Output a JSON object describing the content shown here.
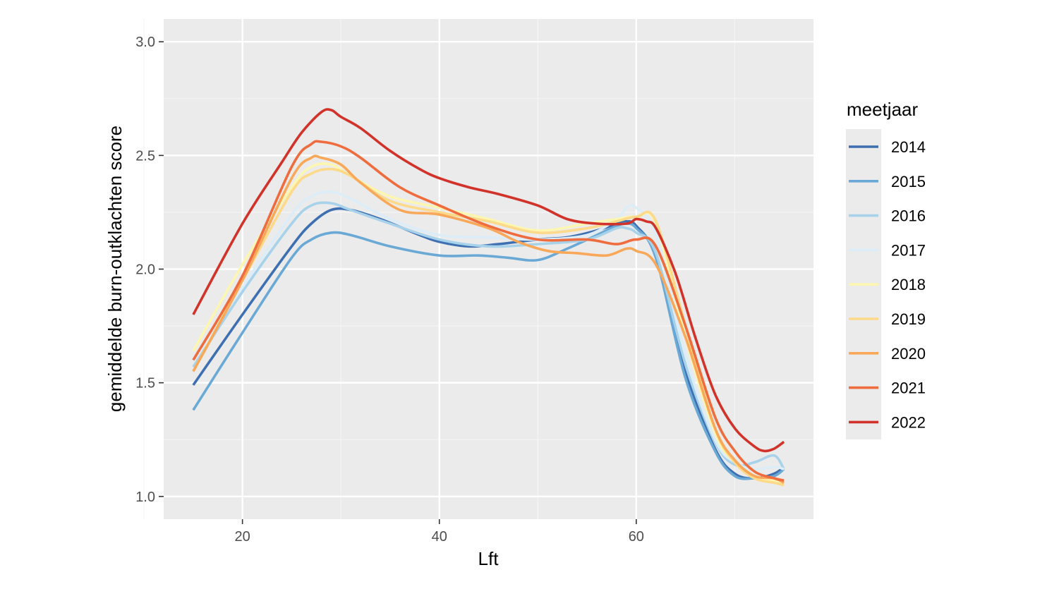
{
  "chart_data": {
    "type": "line",
    "xlabel": "Lft",
    "ylabel": "gemiddelde burn-outklachten score",
    "xlim": [
      12,
      78
    ],
    "ylim": [
      0.9,
      3.1
    ],
    "x_ticks": [
      20,
      40,
      60
    ],
    "y_ticks": [
      "1.0",
      "1.5",
      "2.0",
      "2.5",
      "3.0"
    ],
    "grid": true,
    "legend_title": "meetjaar",
    "legend_position": "right",
    "series": [
      {
        "name": "2014",
        "color": "#3e6fb0",
        "x": [
          15,
          20,
          25,
          27,
          29,
          31,
          34,
          38,
          40,
          43,
          46,
          50,
          53,
          56,
          58,
          59,
          60,
          62,
          65,
          68,
          70,
          72,
          74,
          75
        ],
        "y": [
          1.49,
          1.8,
          2.1,
          2.2,
          2.26,
          2.26,
          2.22,
          2.15,
          2.12,
          2.1,
          2.11,
          2.13,
          2.14,
          2.17,
          2.2,
          2.21,
          2.19,
          2.05,
          1.55,
          1.21,
          1.1,
          1.08,
          1.1,
          1.13
        ]
      },
      {
        "name": "2015",
        "color": "#6aa9d5",
        "x": [
          15,
          20,
          25,
          27,
          29,
          31,
          35,
          40,
          44,
          47,
          50,
          53,
          56,
          58,
          59,
          60,
          62,
          65,
          68,
          70,
          72,
          74,
          75
        ],
        "y": [
          1.38,
          1.72,
          2.05,
          2.13,
          2.16,
          2.15,
          2.1,
          2.06,
          2.06,
          2.05,
          2.04,
          2.09,
          2.15,
          2.19,
          2.2,
          2.18,
          2.05,
          1.52,
          1.2,
          1.09,
          1.08,
          1.09,
          1.12
        ]
      },
      {
        "name": "2016",
        "color": "#a7d2ea",
        "x": [
          15,
          20,
          25,
          27,
          29,
          31,
          35,
          40,
          45,
          50,
          55,
          58,
          59,
          60,
          62,
          65,
          68,
          70,
          72,
          74,
          75
        ],
        "y": [
          1.57,
          1.9,
          2.2,
          2.28,
          2.29,
          2.26,
          2.2,
          2.13,
          2.1,
          2.11,
          2.13,
          2.18,
          2.18,
          2.16,
          2.07,
          1.58,
          1.24,
          1.14,
          1.15,
          1.18,
          1.12
        ]
      },
      {
        "name": "2017",
        "color": "#dcedf7",
        "x": [
          15,
          20,
          25,
          27,
          29,
          31,
          35,
          40,
          45,
          50,
          55,
          58,
          59,
          60,
          62,
          65,
          68,
          70,
          72,
          74,
          75
        ],
        "y": [
          1.6,
          1.92,
          2.24,
          2.32,
          2.34,
          2.31,
          2.22,
          2.15,
          2.14,
          2.13,
          2.15,
          2.22,
          2.27,
          2.27,
          2.15,
          1.62,
          1.25,
          1.15,
          1.12,
          1.13,
          1.12
        ]
      },
      {
        "name": "2018",
        "color": "#fcf6b1",
        "x": [
          15,
          20,
          25,
          27,
          29,
          31,
          35,
          40,
          45,
          50,
          55,
          58,
          60,
          62,
          65,
          68,
          70,
          72,
          74,
          75
        ],
        "y": [
          1.64,
          2.02,
          2.36,
          2.45,
          2.46,
          2.41,
          2.32,
          2.27,
          2.22,
          2.17,
          2.2,
          2.22,
          2.23,
          2.2,
          1.7,
          1.28,
          1.15,
          1.09,
          1.07,
          1.06
        ]
      },
      {
        "name": "2019",
        "color": "#fdd98a",
        "x": [
          15,
          20,
          25,
          27,
          29,
          31,
          35,
          40,
          45,
          50,
          55,
          58,
          60,
          62,
          65,
          68,
          70,
          72,
          74,
          75
        ],
        "y": [
          1.55,
          1.95,
          2.34,
          2.42,
          2.44,
          2.41,
          2.3,
          2.25,
          2.21,
          2.16,
          2.18,
          2.21,
          2.23,
          2.21,
          1.75,
          1.3,
          1.15,
          1.08,
          1.06,
          1.05
        ]
      },
      {
        "name": "2020",
        "color": "#f9a85a",
        "x": [
          15,
          20,
          25,
          27,
          28,
          30,
          32,
          36,
          40,
          45,
          48,
          51,
          54,
          57,
          59,
          60,
          62,
          65,
          68,
          70,
          72,
          74,
          75
        ],
        "y": [
          1.55,
          1.95,
          2.4,
          2.49,
          2.49,
          2.46,
          2.38,
          2.26,
          2.24,
          2.18,
          2.12,
          2.08,
          2.07,
          2.06,
          2.09,
          2.08,
          2.02,
          1.7,
          1.3,
          1.16,
          1.09,
          1.08,
          1.06
        ]
      },
      {
        "name": "2021",
        "color": "#ef6c3e",
        "x": [
          15,
          20,
          25,
          27,
          28,
          30,
          32,
          36,
          40,
          45,
          50,
          55,
          58,
          60,
          62,
          65,
          68,
          70,
          72,
          74,
          75
        ],
        "y": [
          1.6,
          1.97,
          2.45,
          2.55,
          2.56,
          2.54,
          2.49,
          2.36,
          2.28,
          2.19,
          2.13,
          2.13,
          2.11,
          2.13,
          2.1,
          1.75,
          1.35,
          1.2,
          1.11,
          1.08,
          1.07
        ]
      },
      {
        "name": "2022",
        "color": "#d1332a",
        "x": [
          15,
          20,
          24,
          26,
          28,
          29,
          30,
          32,
          35,
          38,
          40,
          43,
          46,
          50,
          53,
          56,
          59,
          60,
          61,
          62,
          64,
          66,
          68,
          70,
          72,
          73,
          74,
          75
        ],
        "y": [
          1.8,
          2.2,
          2.47,
          2.6,
          2.69,
          2.7,
          2.67,
          2.62,
          2.52,
          2.44,
          2.4,
          2.36,
          2.33,
          2.28,
          2.22,
          2.2,
          2.2,
          2.22,
          2.21,
          2.18,
          1.98,
          1.7,
          1.45,
          1.3,
          1.22,
          1.2,
          1.21,
          1.24
        ]
      }
    ]
  }
}
